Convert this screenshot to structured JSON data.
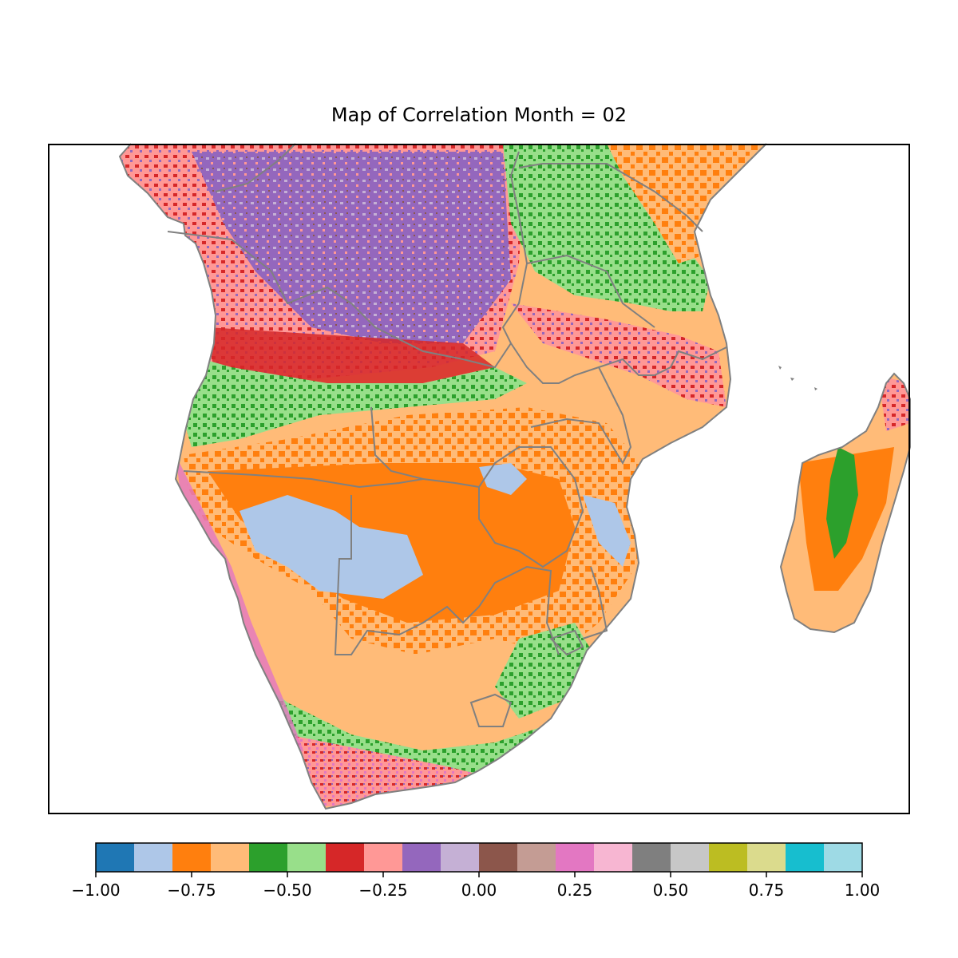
{
  "title": "Map of Correlation Month = 02",
  "colorbar": {
    "min": -1.0,
    "max": 1.0,
    "colors": [
      "#1f77b4",
      "#aec7e8",
      "#ff7f0e",
      "#ffbb78",
      "#2ca02c",
      "#98df8a",
      "#d62728",
      "#ff9896",
      "#9467bd",
      "#c5b0d5",
      "#8c564b",
      "#c49c94",
      "#e377c2",
      "#f7b6d2",
      "#7f7f7f",
      "#c7c7c7",
      "#bcbd22",
      "#dbdb8d",
      "#17becf",
      "#9edae5"
    ],
    "ticks": [
      {
        "value": -1.0,
        "label": "−1.00"
      },
      {
        "value": -0.75,
        "label": "−0.75"
      },
      {
        "value": -0.5,
        "label": "−0.50"
      },
      {
        "value": -0.25,
        "label": "−0.25"
      },
      {
        "value": 0.0,
        "label": "0.00"
      },
      {
        "value": 0.25,
        "label": "0.25"
      },
      {
        "value": 0.5,
        "label": "0.50"
      },
      {
        "value": 0.75,
        "label": "0.75"
      },
      {
        "value": 1.0,
        "label": "1.00"
      }
    ]
  },
  "map": {
    "coast_color": "#808080",
    "border_color": "#808080"
  }
}
